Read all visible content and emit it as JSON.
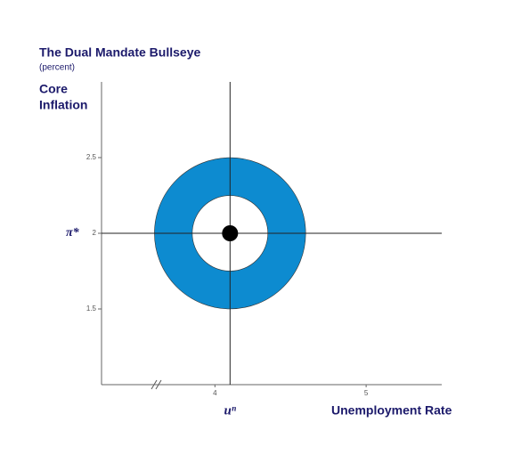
{
  "chart_data": {
    "type": "bullseye",
    "title": "The Dual Mandate Bullseye",
    "subtitle": "(percent)",
    "ylabel": [
      "Core",
      "Inflation"
    ],
    "xlabel": "Unemployment Rate",
    "x_target_label": "uⁿ",
    "y_target_label": "π*",
    "center": {
      "x": 4.1,
      "y": 2
    },
    "outer_radius": 0.5,
    "inner_radius": 0.25,
    "color": "#0d8bd0",
    "xlim": [
      3.25,
      5.5
    ],
    "ylim": [
      1,
      3
    ],
    "xticks": [
      4,
      5
    ],
    "yticks": [
      1.5,
      2,
      2.5
    ],
    "grid": false
  }
}
